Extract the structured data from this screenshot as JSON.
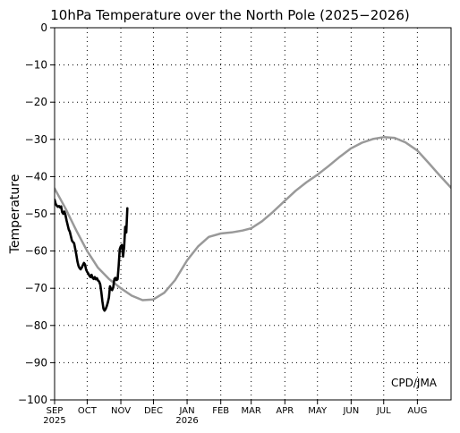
{
  "chart_data": {
    "type": "line",
    "title": "10hPa Temperature over the North Pole (2025−2026)",
    "ylabel": "Temperature",
    "credit": "CPD/JMA",
    "ylim": [
      -100,
      0
    ],
    "y_ticks": [
      0,
      -10,
      -20,
      -30,
      -40,
      -50,
      -60,
      -70,
      -80,
      -90,
      -100
    ],
    "y_tick_labels": [
      "0",
      "−10",
      "−20",
      "−30",
      "−40",
      "−50",
      "−60",
      "−70",
      "−80",
      "−90",
      "−100"
    ],
    "x_range": [
      "2025-09-01",
      "2026-09-01"
    ],
    "x_ticks": [
      {
        "date": "2025-09-01",
        "label": "SEP",
        "sublabel": "2025"
      },
      {
        "date": "2025-10-01",
        "label": "OCT"
      },
      {
        "date": "2025-11-01",
        "label": "NOV"
      },
      {
        "date": "2025-12-01",
        "label": "DEC"
      },
      {
        "date": "2026-01-01",
        "label": "JAN",
        "sublabel": "2026"
      },
      {
        "date": "2026-02-01",
        "label": "FEB"
      },
      {
        "date": "2026-03-01",
        "label": "MAR"
      },
      {
        "date": "2026-04-01",
        "label": "APR"
      },
      {
        "date": "2026-05-01",
        "label": "MAY"
      },
      {
        "date": "2026-06-01",
        "label": "JUN"
      },
      {
        "date": "2026-07-01",
        "label": "JUL"
      },
      {
        "date": "2026-08-01",
        "label": "AUG"
      }
    ],
    "grid": true,
    "series": [
      {
        "color": "#999999",
        "points": [
          [
            "2025-09-01",
            -43.2
          ],
          [
            "2025-09-11",
            -48.5
          ],
          [
            "2025-09-21",
            -54.5
          ],
          [
            "2025-10-01",
            -60.0
          ],
          [
            "2025-10-11",
            -64.5
          ],
          [
            "2025-10-21",
            -67.5
          ],
          [
            "2025-11-01",
            -70.0
          ],
          [
            "2025-11-11",
            -72.0
          ],
          [
            "2025-11-21",
            -73.2
          ],
          [
            "2025-12-01",
            -73.0
          ],
          [
            "2025-12-11",
            -71.2
          ],
          [
            "2025-12-21",
            -67.8
          ],
          [
            "2026-01-01",
            -62.5
          ],
          [
            "2026-01-11",
            -58.8
          ],
          [
            "2026-01-21",
            -56.2
          ],
          [
            "2026-02-01",
            -55.3
          ],
          [
            "2026-02-11",
            -55.0
          ],
          [
            "2026-02-21",
            -54.5
          ],
          [
            "2026-03-01",
            -53.9
          ],
          [
            "2026-03-11",
            -52.0
          ],
          [
            "2026-03-21",
            -49.5
          ],
          [
            "2026-04-01",
            -46.5
          ],
          [
            "2026-04-11",
            -43.8
          ],
          [
            "2026-04-21",
            -41.5
          ],
          [
            "2026-05-01",
            -39.5
          ],
          [
            "2026-05-11",
            -37.2
          ],
          [
            "2026-05-21",
            -34.8
          ],
          [
            "2026-06-01",
            -32.4
          ],
          [
            "2026-06-11",
            -30.9
          ],
          [
            "2026-06-21",
            -29.9
          ],
          [
            "2026-07-01",
            -29.4
          ],
          [
            "2026-07-11",
            -29.6
          ],
          [
            "2026-07-21",
            -30.8
          ],
          [
            "2026-08-01",
            -33.0
          ],
          [
            "2026-08-11",
            -36.2
          ],
          [
            "2026-08-21",
            -39.5
          ],
          [
            "2026-09-01",
            -43.0
          ]
        ]
      },
      {
        "color": "#000000",
        "points": [
          [
            "2025-09-01",
            -46.2
          ],
          [
            "2025-09-02",
            -47.3
          ],
          [
            "2025-09-03",
            -47.8
          ],
          [
            "2025-09-04",
            -48.1
          ],
          [
            "2025-09-05",
            -47.9
          ],
          [
            "2025-09-06",
            -48.3
          ],
          [
            "2025-09-07",
            -48.0
          ],
          [
            "2025-09-08",
            -49.6
          ],
          [
            "2025-09-09",
            -50.0
          ],
          [
            "2025-09-10",
            -49.4
          ],
          [
            "2025-09-11",
            -50.3
          ],
          [
            "2025-09-12",
            -51.8
          ],
          [
            "2025-09-13",
            -53.0
          ],
          [
            "2025-09-14",
            -54.2
          ],
          [
            "2025-09-15",
            -54.8
          ],
          [
            "2025-09-16",
            -56.0
          ],
          [
            "2025-09-17",
            -57.2
          ],
          [
            "2025-09-18",
            -57.6
          ],
          [
            "2025-09-19",
            -57.9
          ],
          [
            "2025-09-20",
            -59.5
          ],
          [
            "2025-09-21",
            -61.0
          ],
          [
            "2025-09-22",
            -62.8
          ],
          [
            "2025-09-23",
            -64.0
          ],
          [
            "2025-09-24",
            -64.6
          ],
          [
            "2025-09-25",
            -64.9
          ],
          [
            "2025-09-26",
            -64.5
          ],
          [
            "2025-09-27",
            -63.8
          ],
          [
            "2025-09-28",
            -63.2
          ],
          [
            "2025-09-29",
            -63.6
          ],
          [
            "2025-09-30",
            -65.0
          ],
          [
            "2025-10-01",
            -65.6
          ],
          [
            "2025-10-02",
            -66.0
          ],
          [
            "2025-10-03",
            -66.6
          ],
          [
            "2025-10-04",
            -67.0
          ],
          [
            "2025-10-05",
            -66.4
          ],
          [
            "2025-10-06",
            -67.2
          ],
          [
            "2025-10-07",
            -67.5
          ],
          [
            "2025-10-08",
            -67.0
          ],
          [
            "2025-10-09",
            -67.6
          ],
          [
            "2025-10-10",
            -67.3
          ],
          [
            "2025-10-11",
            -67.9
          ],
          [
            "2025-10-12",
            -68.2
          ],
          [
            "2025-10-13",
            -69.0
          ],
          [
            "2025-10-14",
            -71.0
          ],
          [
            "2025-10-15",
            -73.5
          ],
          [
            "2025-10-16",
            -75.5
          ],
          [
            "2025-10-17",
            -76.0
          ],
          [
            "2025-10-18",
            -75.6
          ],
          [
            "2025-10-19",
            -74.8
          ],
          [
            "2025-10-20",
            -73.8
          ],
          [
            "2025-10-21",
            -72.5
          ],
          [
            "2025-10-22",
            -69.5
          ],
          [
            "2025-10-23",
            -70.2
          ],
          [
            "2025-10-24",
            -70.5
          ],
          [
            "2025-10-25",
            -69.8
          ],
          [
            "2025-10-26",
            -67.5
          ],
          [
            "2025-10-27",
            -67.2
          ],
          [
            "2025-10-28",
            -67.8
          ],
          [
            "2025-10-29",
            -67.6
          ],
          [
            "2025-10-30",
            -64.0
          ],
          [
            "2025-10-31",
            -59.5
          ],
          [
            "2025-11-01",
            -58.7
          ],
          [
            "2025-11-02",
            -58.4
          ],
          [
            "2025-11-03",
            -61.5
          ],
          [
            "2025-11-04",
            -59.0
          ],
          [
            "2025-11-05",
            -53.5
          ],
          [
            "2025-11-06",
            -55.0
          ],
          [
            "2025-11-07",
            -48.5
          ]
        ]
      }
    ]
  }
}
